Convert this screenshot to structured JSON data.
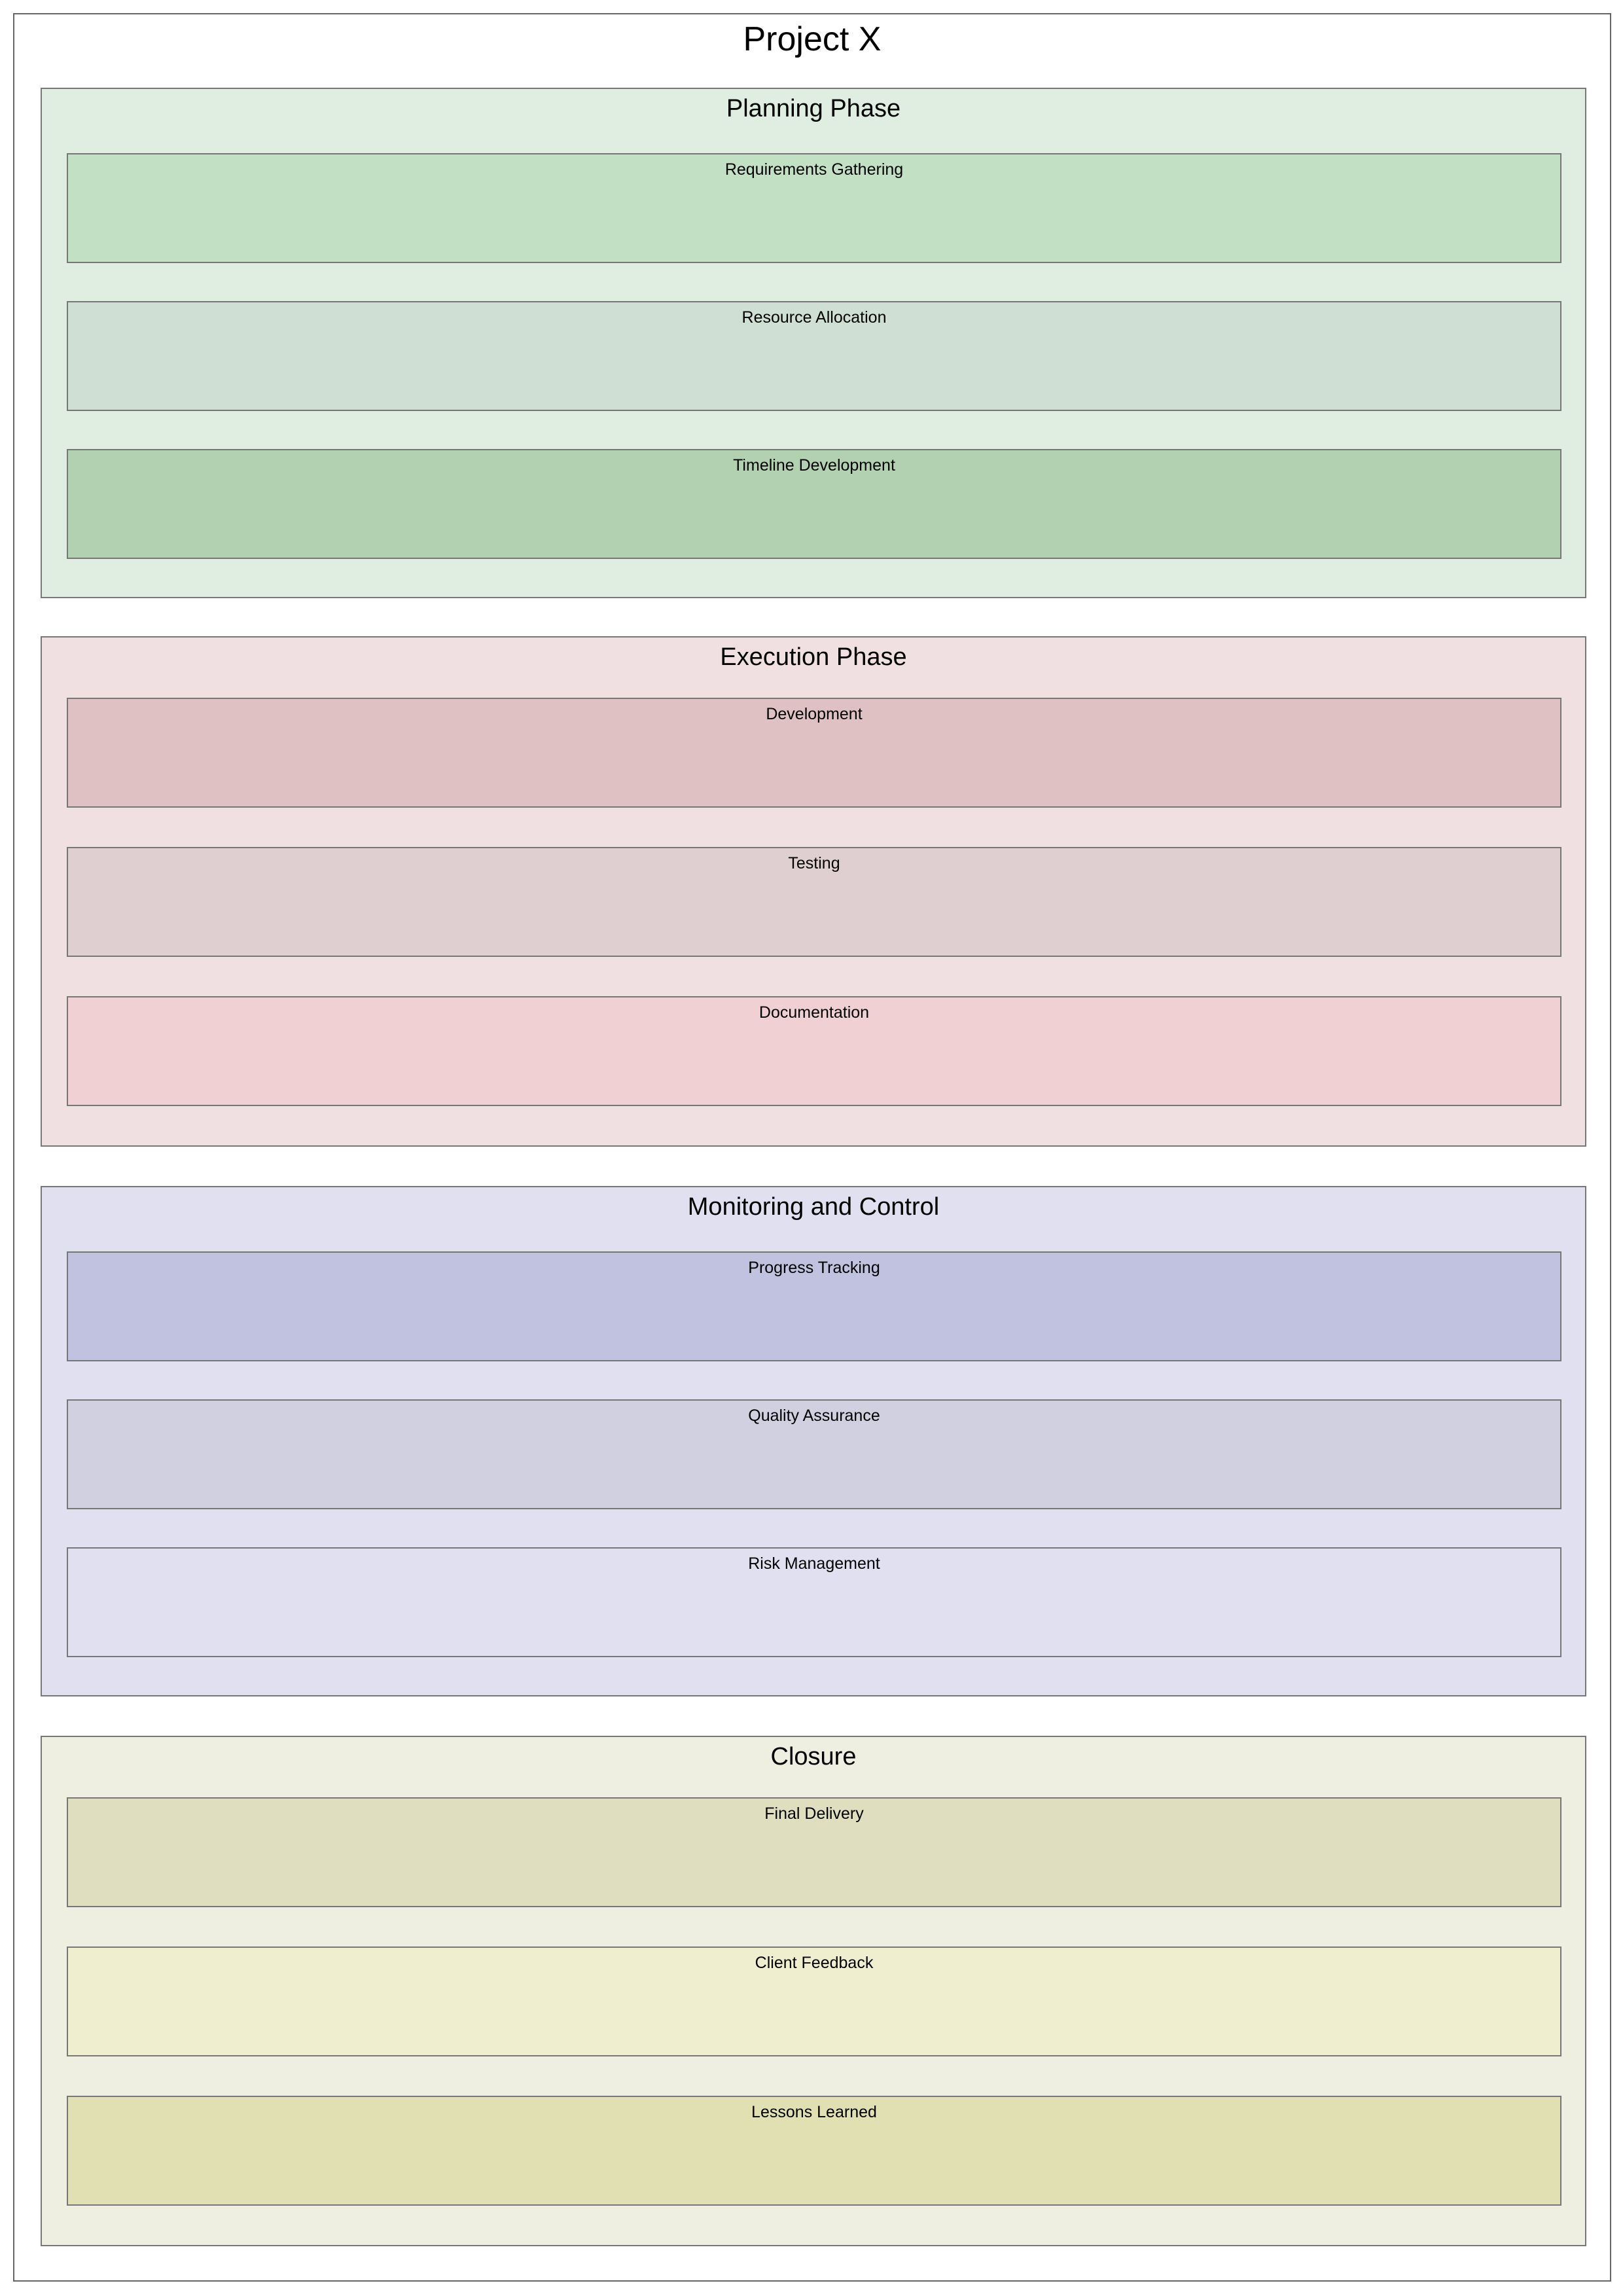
{
  "title": "Project X",
  "phases": [
    {
      "name": "Planning Phase",
      "color": "#dfeee1",
      "tasks": [
        {
          "label": "Requirements Gathering",
          "color": "#c2e0c3"
        },
        {
          "label": "Resource Allocation",
          "color": "#cfdfd3"
        },
        {
          "label": "Timeline Development",
          "color": "#b2d1b1"
        }
      ]
    },
    {
      "name": "Execution Phase",
      "color": "#f0e0e1",
      "tasks": [
        {
          "label": "Development",
          "color": "#dfc0c3"
        },
        {
          "label": "Testing",
          "color": "#e0cfd0"
        },
        {
          "label": "Documentation",
          "color": "#f0d0d3"
        }
      ]
    },
    {
      "name": "Monitoring and Control",
      "color": "#e0e0f0",
      "tasks": [
        {
          "label": "Progress Tracking",
          "color": "#c1c1e0"
        },
        {
          "label": "Quality Assurance",
          "color": "#d1d0e1"
        },
        {
          "label": "Risk Management",
          "color": "#e0e0f0"
        }
      ]
    },
    {
      "name": "Closure",
      "color": "#eeefe0",
      "tasks": [
        {
          "label": "Final Delivery",
          "color": "#dfdfc0"
        },
        {
          "label": "Client Feedback",
          "color": "#efefd0"
        },
        {
          "label": "Lessons Learned",
          "color": "#e0e0b2"
        }
      ]
    }
  ]
}
